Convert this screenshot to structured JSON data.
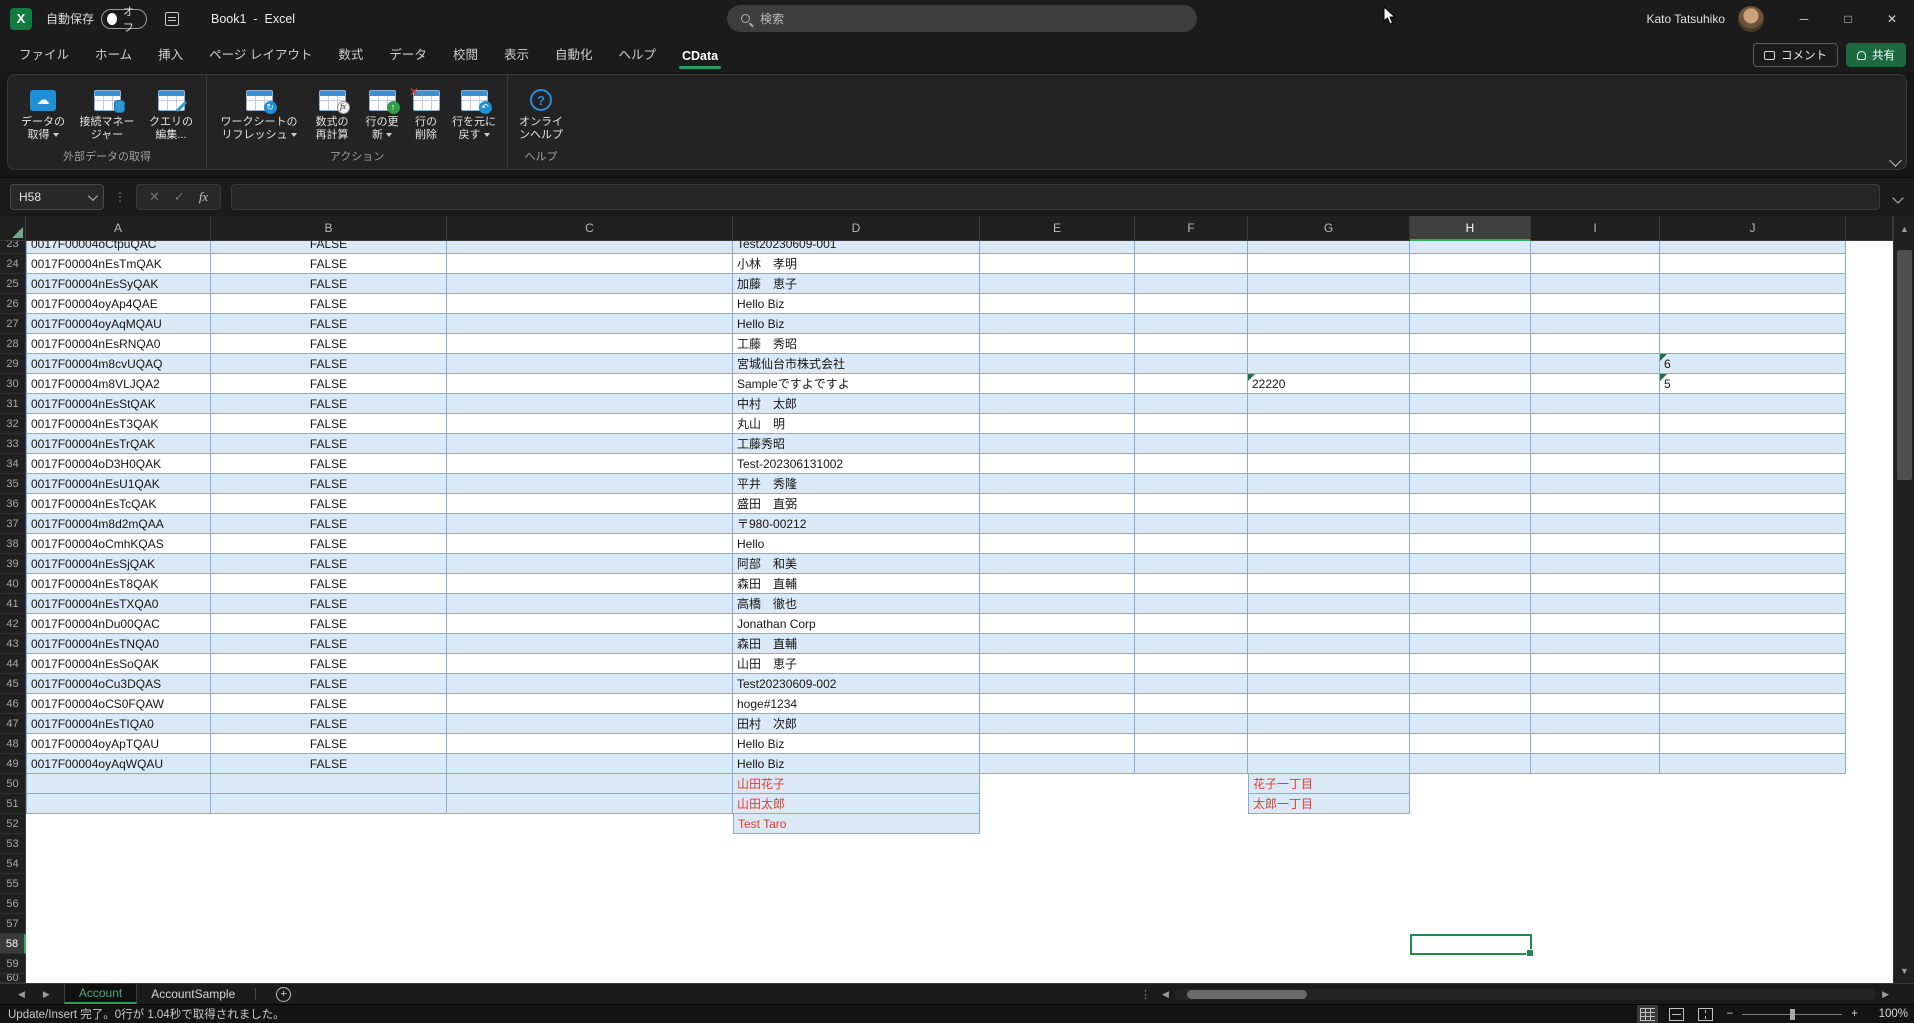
{
  "titlebar": {
    "app_initial": "X",
    "autosave_label": "自動保存",
    "autosave_state": "オフ",
    "title": "Book1  -  Excel",
    "search_placeholder": "検索",
    "user_name": "Kato Tatsuhiko"
  },
  "icons": {
    "minimize": "─",
    "maximize": "□",
    "close": "✕",
    "cancel": "✕",
    "enter": "✓",
    "fx": "fx",
    "prev": "◀",
    "next": "▶",
    "up": "▲",
    "down": "▼",
    "dots": "⋮",
    "plus": "+",
    "minus": "−",
    "plus_zoom": "+",
    "cloud": "☁",
    "refresh": "↻",
    "arrow_up": "↑",
    "undo": "↶",
    "x_mark": "✕",
    "question": "?"
  },
  "ribbon": {
    "tabs": [
      {
        "label": "ファイル"
      },
      {
        "label": "ホーム"
      },
      {
        "label": "挿入"
      },
      {
        "label": "ページ レイアウト"
      },
      {
        "label": "数式"
      },
      {
        "label": "データ"
      },
      {
        "label": "校閲"
      },
      {
        "label": "表示"
      },
      {
        "label": "自動化"
      },
      {
        "label": "ヘルプ"
      },
      {
        "label": "CData",
        "active": true
      }
    ],
    "comments_label": "コメント",
    "share_label": "共有",
    "groups": [
      {
        "label": "外部データの取得",
        "buttons": [
          {
            "label": "データの取得",
            "icon": "cdata-cloud",
            "dropdown": true
          },
          {
            "label": "接続マネージャー",
            "icon": "table-db"
          },
          {
            "label": "クエリの編集...",
            "icon": "table-edit"
          }
        ]
      },
      {
        "label": "アクション",
        "buttons": [
          {
            "label": "ワークシートのリフレッシュ",
            "icon": "table-refresh",
            "dropdown": true
          },
          {
            "label": "数式の再計算",
            "icon": "table-calc"
          },
          {
            "label": "行の更新",
            "icon": "table-up",
            "dropdown": true
          },
          {
            "label": "行の削除",
            "icon": "table-x"
          },
          {
            "label": "行を元に戻す",
            "icon": "table-undo",
            "dropdown": true
          }
        ]
      },
      {
        "label": "ヘルプ",
        "buttons": [
          {
            "label": "オンラインヘルプ",
            "icon": "help-circle"
          }
        ]
      }
    ]
  },
  "formula_bar": {
    "name_box": "H58",
    "formula": ""
  },
  "sheet": {
    "columns": [
      "A",
      "B",
      "C",
      "D",
      "E",
      "F",
      "G",
      "H",
      "I",
      "J"
    ],
    "active_cell": {
      "col": "H",
      "row": 58
    },
    "rows": [
      {
        "n": 23,
        "band": "blue",
        "partial": "top",
        "cells": {
          "A": "0017F00004oCtpuQAC",
          "B": "FALSE",
          "D": "Test20230609-001"
        }
      },
      {
        "n": 24,
        "band": "white",
        "cells": {
          "A": "0017F00004nEsTmQAK",
          "B": "FALSE",
          "D": "小林　孝明"
        }
      },
      {
        "n": 25,
        "band": "blue",
        "cells": {
          "A": "0017F00004nEsSyQAK",
          "B": "FALSE",
          "D": "加藤　恵子"
        }
      },
      {
        "n": 26,
        "band": "white",
        "cells": {
          "A": "0017F00004oyAp4QAE",
          "B": "FALSE",
          "D": "Hello Biz"
        }
      },
      {
        "n": 27,
        "band": "blue",
        "cells": {
          "A": "0017F00004oyAqMQAU",
          "B": "FALSE",
          "D": "Hello Biz"
        }
      },
      {
        "n": 28,
        "band": "white",
        "cells": {
          "A": "0017F00004nEsRNQA0",
          "B": "FALSE",
          "D": "工藤　秀昭"
        }
      },
      {
        "n": 29,
        "band": "blue",
        "cells": {
          "A": "0017F00004m8cvUQAQ",
          "B": "FALSE",
          "D": "宮城仙台市株式会社",
          "J": {
            "v": "6",
            "tri": true
          }
        }
      },
      {
        "n": 30,
        "band": "white",
        "cells": {
          "A": "0017F00004m8VLJQA2",
          "B": "FALSE",
          "D": "Sampleですよですよ",
          "G": {
            "v": "22220",
            "tri": true
          },
          "J": {
            "v": "5",
            "tri": true
          }
        }
      },
      {
        "n": 31,
        "band": "blue",
        "cells": {
          "A": "0017F00004nEsStQAK",
          "B": "FALSE",
          "D": "中村　太郎"
        }
      },
      {
        "n": 32,
        "band": "white",
        "cells": {
          "A": "0017F00004nEsT3QAK",
          "B": "FALSE",
          "D": "丸山　明"
        }
      },
      {
        "n": 33,
        "band": "blue",
        "cells": {
          "A": "0017F00004nEsTrQAK",
          "B": "FALSE",
          "D": "工藤秀昭"
        }
      },
      {
        "n": 34,
        "band": "white",
        "cells": {
          "A": "0017F00004oD3H0QAK",
          "B": "FALSE",
          "D": "Test-202306131002"
        }
      },
      {
        "n": 35,
        "band": "blue",
        "cells": {
          "A": "0017F00004nEsU1QAK",
          "B": "FALSE",
          "D": "平井　秀隆"
        }
      },
      {
        "n": 36,
        "band": "white",
        "cells": {
          "A": "0017F00004nEsTcQAK",
          "B": "FALSE",
          "D": "盛田　直弼"
        }
      },
      {
        "n": 37,
        "band": "blue",
        "cells": {
          "A": "0017F00004m8d2mQAA",
          "B": "FALSE",
          "D": "〒980-00212"
        }
      },
      {
        "n": 38,
        "band": "white",
        "cells": {
          "A": "0017F00004oCmhKQAS",
          "B": "FALSE",
          "D": "Hello"
        }
      },
      {
        "n": 39,
        "band": "blue",
        "cells": {
          "A": "0017F00004nEsSjQAK",
          "B": "FALSE",
          "D": "阿部　和美"
        }
      },
      {
        "n": 40,
        "band": "white",
        "cells": {
          "A": "0017F00004nEsT8QAK",
          "B": "FALSE",
          "D": "森田　直輔"
        }
      },
      {
        "n": 41,
        "band": "blue",
        "cells": {
          "A": "0017F00004nEsTXQA0",
          "B": "FALSE",
          "D": "高橋　徹也"
        }
      },
      {
        "n": 42,
        "band": "white",
        "cells": {
          "A": "0017F00004nDu00QAC",
          "B": "FALSE",
          "D": "Jonathan Corp"
        }
      },
      {
        "n": 43,
        "band": "blue",
        "cells": {
          "A": "0017F00004nEsTNQA0",
          "B": "FALSE",
          "D": "森田　直輔"
        }
      },
      {
        "n": 44,
        "band": "white",
        "cells": {
          "A": "0017F00004nEsSoQAK",
          "B": "FALSE",
          "D": "山田　恵子"
        }
      },
      {
        "n": 45,
        "band": "blue",
        "cells": {
          "A": "0017F00004oCu3DQAS",
          "B": "FALSE",
          "D": "Test20230609-002"
        }
      },
      {
        "n": 46,
        "band": "white",
        "cells": {
          "A": "0017F00004oCS0FQAW",
          "B": "FALSE",
          "D": "hoge#1234"
        }
      },
      {
        "n": 47,
        "band": "blue",
        "cells": {
          "A": "0017F00004nEsTIQA0",
          "B": "FALSE",
          "D": "田村　次郎"
        }
      },
      {
        "n": 48,
        "band": "white",
        "cells": {
          "A": "0017F00004oyApTQAU",
          "B": "FALSE",
          "D": "Hello Biz"
        }
      },
      {
        "n": 49,
        "band": "blue",
        "cells": {
          "A": "0017F00004oyAqWQAU",
          "B": "FALSE",
          "D": "Hello Biz"
        }
      },
      {
        "n": 50,
        "blue_cells": [
          "A",
          "B",
          "C",
          "D",
          "G"
        ],
        "cells": {
          "D": {
            "v": "山田花子",
            "red": true
          },
          "G": {
            "v": "花子一丁目",
            "red": true
          }
        }
      },
      {
        "n": 51,
        "blue_cells": [
          "A",
          "B",
          "C",
          "D",
          "G"
        ],
        "cells": {
          "D": {
            "v": "山田太郎",
            "red": true
          },
          "G": {
            "v": "太郎一丁目",
            "red": true
          }
        }
      },
      {
        "n": 52,
        "blue_cells": [
          "D"
        ],
        "cells": {
          "D": {
            "v": "Test Taro",
            "red": true
          }
        }
      },
      {
        "n": 53,
        "cells": {}
      },
      {
        "n": 54,
        "cells": {}
      },
      {
        "n": 55,
        "cells": {}
      },
      {
        "n": 56,
        "cells": {}
      },
      {
        "n": 57,
        "cells": {}
      },
      {
        "n": 58,
        "cells": {}
      },
      {
        "n": 59,
        "cells": {}
      },
      {
        "n": 60,
        "partial": "bottom",
        "cells": {}
      }
    ]
  },
  "tabs_bar": {
    "sheets": [
      {
        "label": "Account",
        "active": true
      },
      {
        "label": "AccountSample"
      }
    ]
  },
  "status_bar": {
    "message": "Update/Insert 完了。0行が 1.04秒で取得されました。",
    "zoom": "100%"
  }
}
